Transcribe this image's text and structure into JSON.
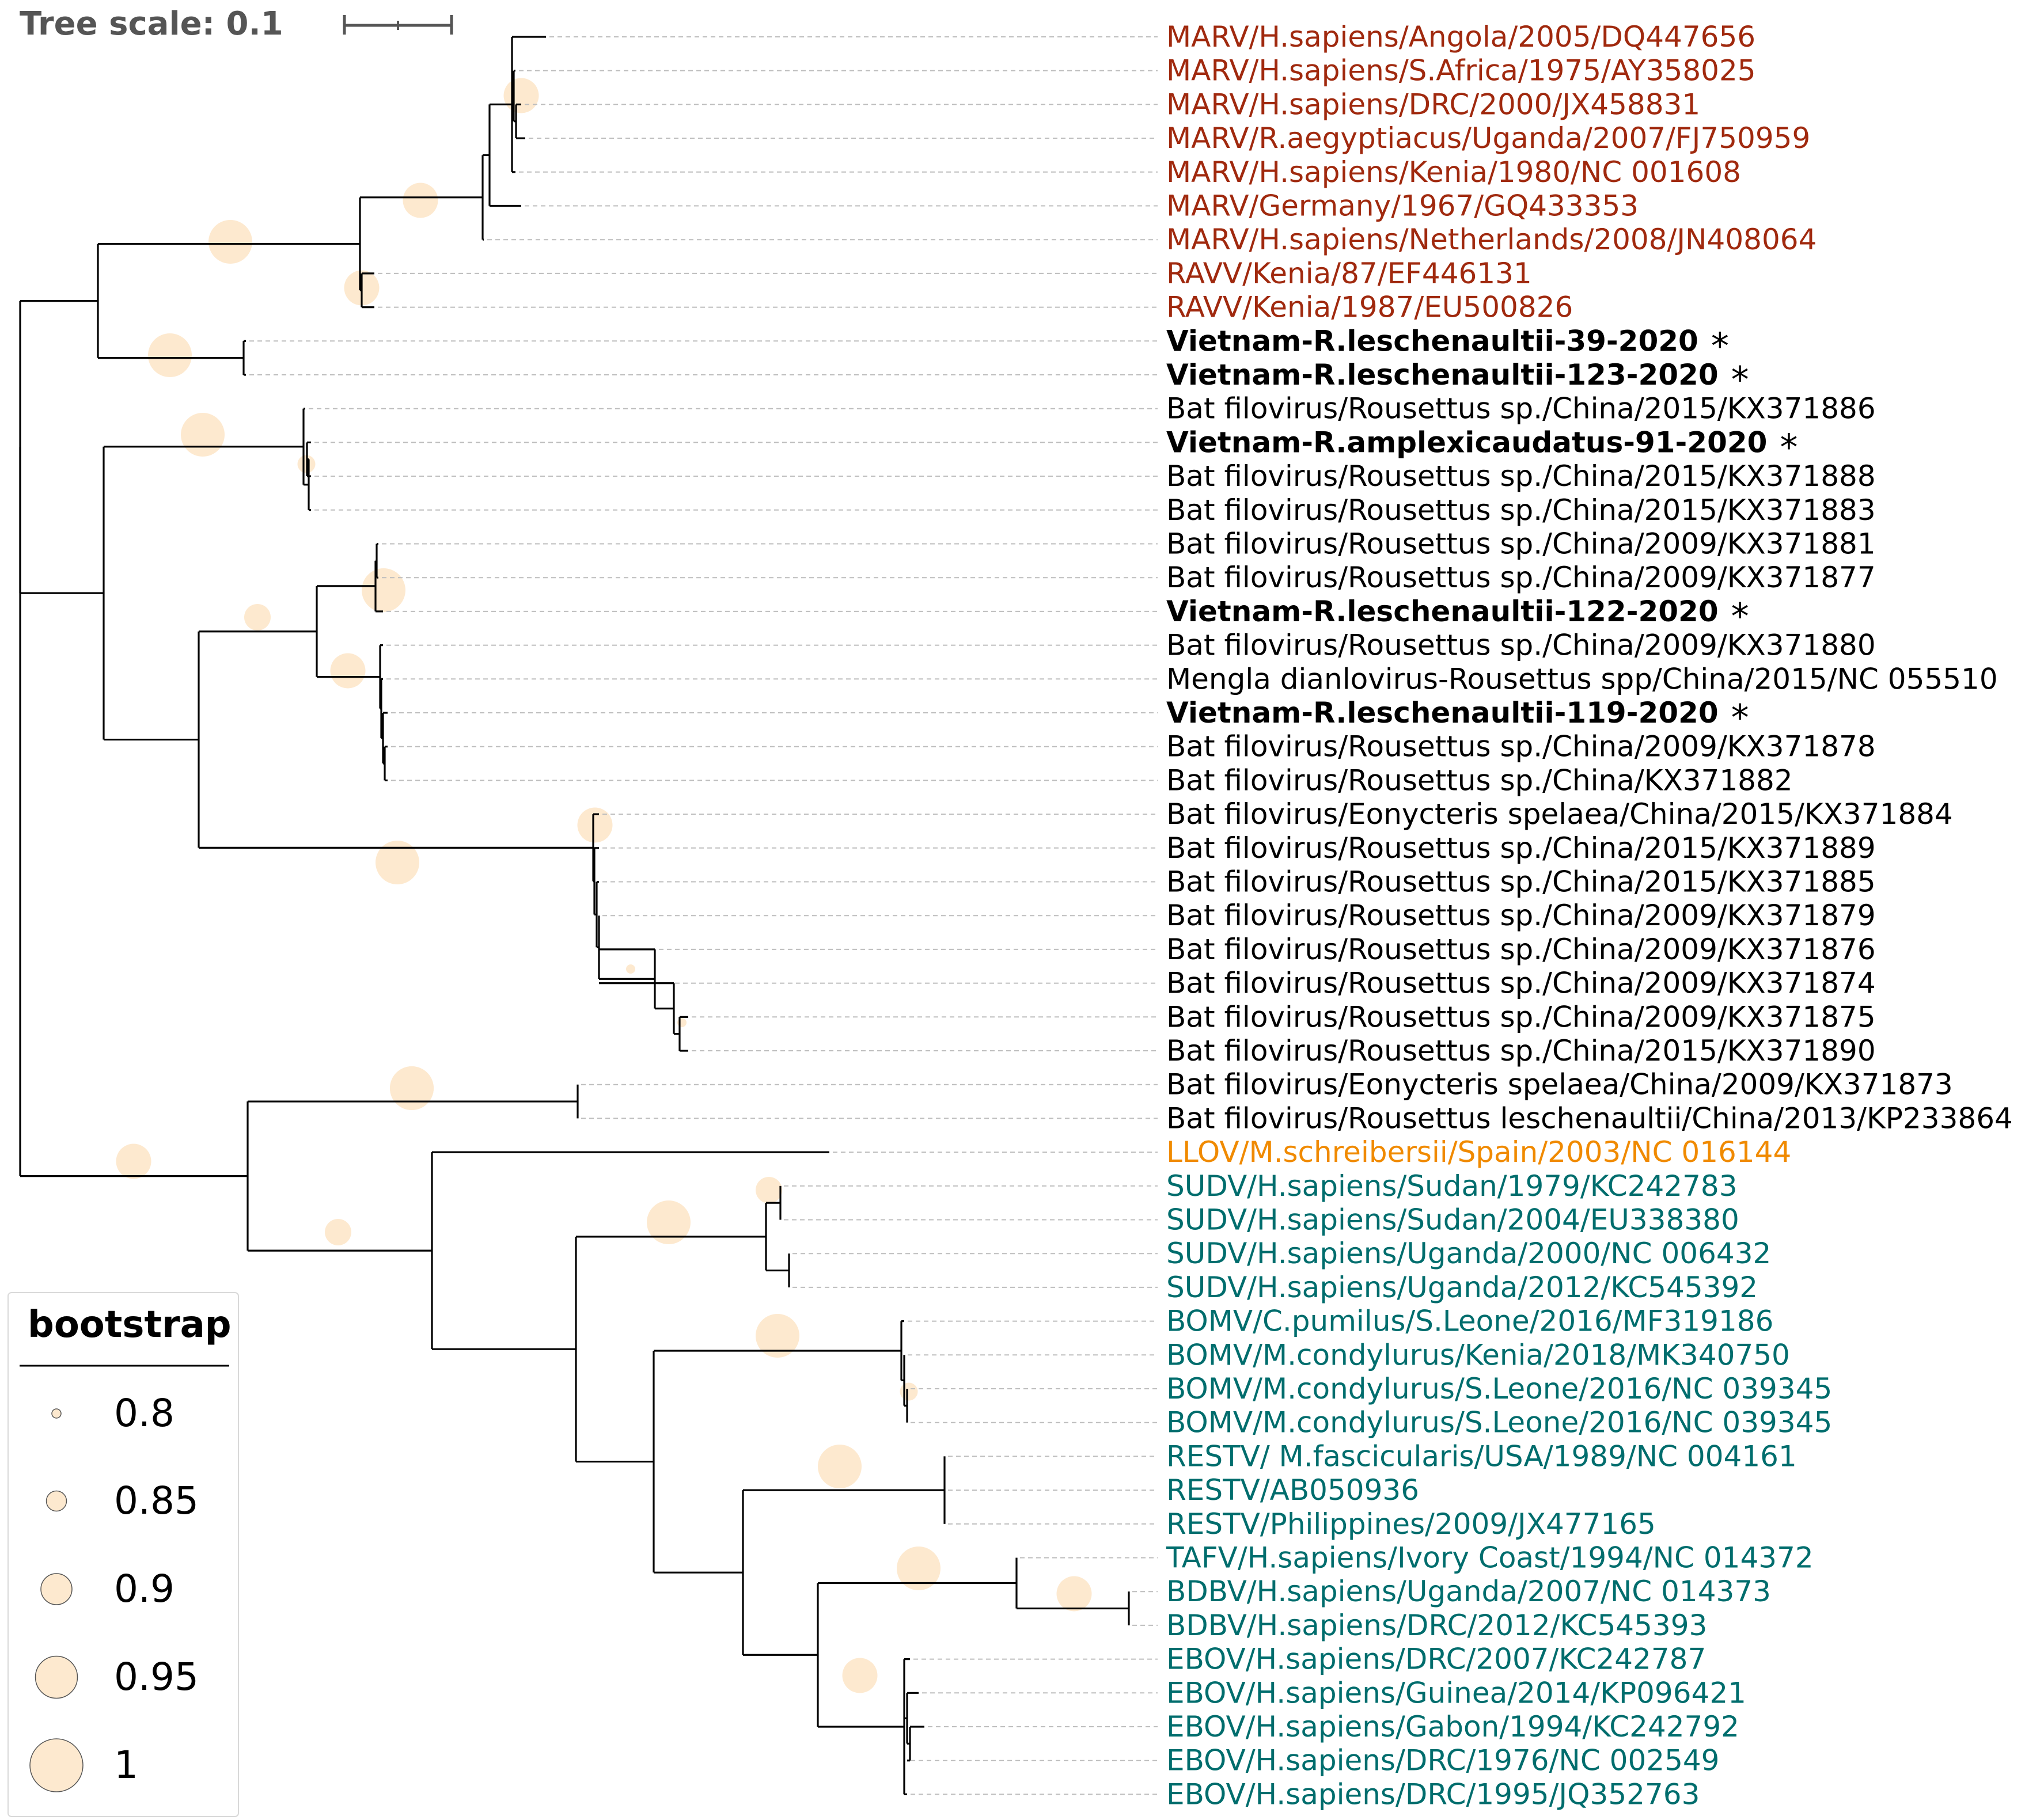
{
  "scale": {
    "label": "Tree scale: 0.1"
  },
  "colors": {
    "marburg": "#a0290e",
    "lloviu": "#f08a00",
    "ebola": "#006d6d",
    "other": "#000000",
    "bootstrap_fill": "#fde9cf"
  },
  "leaves": [
    {
      "label": "MARV/H.sapiens/Angola/2005/DQ447656",
      "group": "marburg",
      "bold": false,
      "star": false
    },
    {
      "label": "MARV/H.sapiens/S.Africa/1975/AY358025",
      "group": "marburg",
      "bold": false,
      "star": false
    },
    {
      "label": "MARV/H.sapiens/DRC/2000/JX458831",
      "group": "marburg",
      "bold": false,
      "star": false
    },
    {
      "label": "MARV/R.aegyptiacus/Uganda/2007/FJ750959",
      "group": "marburg",
      "bold": false,
      "star": false
    },
    {
      "label": "MARV/H.sapiens/Kenia/1980/NC 001608",
      "group": "marburg",
      "bold": false,
      "star": false
    },
    {
      "label": "MARV/Germany/1967/GQ433353",
      "group": "marburg",
      "bold": false,
      "star": false
    },
    {
      "label": "MARV/H.sapiens/Netherlands/2008/JN408064",
      "group": "marburg",
      "bold": false,
      "star": false
    },
    {
      "label": "RAVV/Kenia/87/EF446131",
      "group": "marburg",
      "bold": false,
      "star": false
    },
    {
      "label": "RAVV/Kenia/1987/EU500826",
      "group": "marburg",
      "bold": false,
      "star": false
    },
    {
      "label": "Vietnam-R.leschenaultii-39-2020",
      "group": "other",
      "bold": true,
      "star": true
    },
    {
      "label": "Vietnam-R.leschenaultii-123-2020",
      "group": "other",
      "bold": true,
      "star": true
    },
    {
      "label": "Bat filovirus/Rousettus sp./China/2015/KX371886",
      "group": "other",
      "bold": false,
      "star": false
    },
    {
      "label": "Vietnam-R.amplexicaudatus-91-2020",
      "group": "other",
      "bold": true,
      "star": true
    },
    {
      "label": "Bat filovirus/Rousettus sp./China/2015/KX371888",
      "group": "other",
      "bold": false,
      "star": false
    },
    {
      "label": "Bat filovirus/Rousettus sp./China/2015/KX371883",
      "group": "other",
      "bold": false,
      "star": false
    },
    {
      "label": "Bat filovirus/Rousettus sp./China/2009/KX371881",
      "group": "other",
      "bold": false,
      "star": false
    },
    {
      "label": "Bat filovirus/Rousettus sp./China/2009/KX371877",
      "group": "other",
      "bold": false,
      "star": false
    },
    {
      "label": "Vietnam-R.leschenaultii-122-2020",
      "group": "other",
      "bold": true,
      "star": true
    },
    {
      "label": "Bat filovirus/Rousettus sp./China/2009/KX371880",
      "group": "other",
      "bold": false,
      "star": false
    },
    {
      "label": "Mengla dianlovirus-Rousettus spp/China/2015/NC 055510",
      "group": "other",
      "bold": false,
      "star": false
    },
    {
      "label": "Vietnam-R.leschenaultii-119-2020",
      "group": "other",
      "bold": true,
      "star": true
    },
    {
      "label": "Bat filovirus/Rousettus sp./China/2009/KX371878",
      "group": "other",
      "bold": false,
      "star": false
    },
    {
      "label": "Bat filovirus/Rousettus sp./China/KX371882",
      "group": "other",
      "bold": false,
      "star": false
    },
    {
      "label": "Bat filovirus/Eonycteris spelaea/China/2015/KX371884",
      "group": "other",
      "bold": false,
      "star": false
    },
    {
      "label": "Bat filovirus/Rousettus sp./China/2015/KX371889",
      "group": "other",
      "bold": false,
      "star": false
    },
    {
      "label": "Bat filovirus/Rousettus sp./China/2015/KX371885",
      "group": "other",
      "bold": false,
      "star": false
    },
    {
      "label": "Bat filovirus/Rousettus sp./China/2009/KX371879",
      "group": "other",
      "bold": false,
      "star": false
    },
    {
      "label": "Bat filovirus/Rousettus sp./China/2009/KX371876",
      "group": "other",
      "bold": false,
      "star": false
    },
    {
      "label": "Bat filovirus/Rousettus sp./China/2009/KX371874",
      "group": "other",
      "bold": false,
      "star": false
    },
    {
      "label": "Bat filovirus/Rousettus sp./China/2009/KX371875",
      "group": "other",
      "bold": false,
      "star": false
    },
    {
      "label": "Bat filovirus/Rousettus sp./China/2015/KX371890",
      "group": "other",
      "bold": false,
      "star": false
    },
    {
      "label": "Bat filovirus/Eonycteris spelaea/China/2009/KX371873",
      "group": "other",
      "bold": false,
      "star": false
    },
    {
      "label": "Bat filovirus/Rousettus leschenaultii/China/2013/KP233864",
      "group": "other",
      "bold": false,
      "star": false
    },
    {
      "label": "LLOV/M.schreibersii/Spain/2003/NC 016144",
      "group": "lloviu",
      "bold": false,
      "star": false
    },
    {
      "label": "SUDV/H.sapiens/Sudan/1979/KC242783",
      "group": "ebola",
      "bold": false,
      "star": false
    },
    {
      "label": "SUDV/H.sapiens/Sudan/2004/EU338380",
      "group": "ebola",
      "bold": false,
      "star": false
    },
    {
      "label": "SUDV/H.sapiens/Uganda/2000/NC 006432",
      "group": "ebola",
      "bold": false,
      "star": false
    },
    {
      "label": "SUDV/H.sapiens/Uganda/2012/KC545392",
      "group": "ebola",
      "bold": false,
      "star": false
    },
    {
      "label": "BOMV/C.pumilus/S.Leone/2016/MF319186",
      "group": "ebola",
      "bold": false,
      "star": false
    },
    {
      "label": "BOMV/M.condylurus/Kenia/2018/MK340750",
      "group": "ebola",
      "bold": false,
      "star": false
    },
    {
      "label": "BOMV/M.condylurus/S.Leone/2016/NC 039345",
      "group": "ebola",
      "bold": false,
      "star": false
    },
    {
      "label": "BOMV/M.condylurus/S.Leone/2016/NC 039345",
      "group": "ebola",
      "bold": false,
      "star": false
    },
    {
      "label": "RESTV/ M.fascicularis/USA/1989/NC 004161",
      "group": "ebola",
      "bold": false,
      "star": false
    },
    {
      "label": "RESTV/AB050936",
      "group": "ebola",
      "bold": false,
      "star": false
    },
    {
      "label": "RESTV/Philippines/2009/JX477165",
      "group": "ebola",
      "bold": false,
      "star": false
    },
    {
      "label": "TAFV/H.sapiens/Ivory Coast/1994/NC 014372",
      "group": "ebola",
      "bold": false,
      "star": false
    },
    {
      "label": "BDBV/H.sapiens/Uganda/2007/NC 014373",
      "group": "ebola",
      "bold": false,
      "star": false
    },
    {
      "label": "BDBV/H.sapiens/DRC/2012/KC545393",
      "group": "ebola",
      "bold": false,
      "star": false
    },
    {
      "label": "EBOV/H.sapiens/DRC/2007/KC242787",
      "group": "ebola",
      "bold": false,
      "star": false
    },
    {
      "label": "EBOV/H.sapiens/Guinea/2014/KP096421",
      "group": "ebola",
      "bold": false,
      "star": false
    },
    {
      "label": "EBOV/H.sapiens/Gabon/1994/KC242792",
      "group": "ebola",
      "bold": false,
      "star": false
    },
    {
      "label": "EBOV/H.sapiens/DRC/1976/NC 002549",
      "group": "ebola",
      "bold": false,
      "star": false
    },
    {
      "label": "EBOV/H.sapiens/DRC/1995/JQ352763",
      "group": "ebola",
      "bold": false,
      "star": false
    }
  ],
  "legend": {
    "title": "bootstrap",
    "items": [
      {
        "label": "0.8",
        "value": 0.8
      },
      {
        "label": "0.85",
        "value": 0.85
      },
      {
        "label": "0.9",
        "value": 0.9
      },
      {
        "label": "0.95",
        "value": 0.95
      },
      {
        "label": "1",
        "value": 1
      }
    ]
  }
}
